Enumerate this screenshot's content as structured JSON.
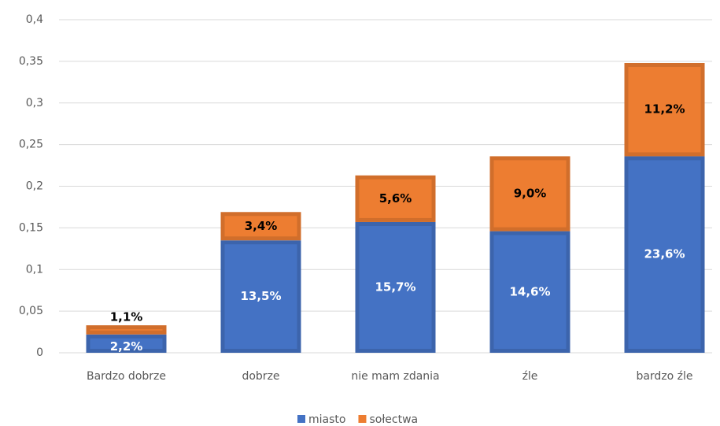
{
  "chart_data": {
    "type": "stacked_bar",
    "categories": [
      "Bardzo dobrze",
      "dobrze",
      "nie mam zdania",
      "źle",
      "bardzo źle"
    ],
    "series": [
      {
        "name": "miasto",
        "color": "#4472c4",
        "values": [
          0.022,
          0.135,
          0.157,
          0.146,
          0.236
        ],
        "value_labels": [
          "2,2%",
          "13,5%",
          "15,7%",
          "14,6%",
          "23,6%"
        ]
      },
      {
        "name": "sołectwa",
        "color": "#ed7d31",
        "values": [
          0.011,
          0.034,
          0.056,
          0.09,
          0.112
        ],
        "value_labels": [
          "1,1%",
          "3,4%",
          "5,6%",
          "9,0%",
          "11,2%"
        ]
      }
    ],
    "ylim": [
      0,
      0.4
    ],
    "yticks": [
      0,
      {
        "value": 0.05,
        "label": "0,05"
      },
      {
        "value": 0.1,
        "label": "0,1"
      },
      {
        "value": 0.15,
        "label": "0,15"
      },
      {
        "value": 0.2,
        "label": "0,2"
      },
      {
        "value": 0.25,
        "label": "0,25"
      },
      {
        "value": 0.3,
        "label": "0,3"
      },
      {
        "value": 0.35,
        "label": "0,35"
      },
      {
        "value": 0.4,
        "label": "0,4"
      }
    ],
    "grid": true,
    "legend": "bottom"
  }
}
